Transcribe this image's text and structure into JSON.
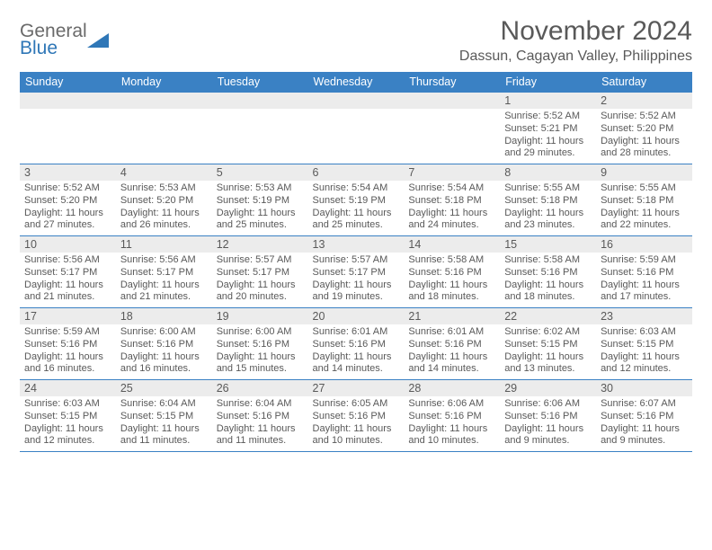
{
  "logo": {
    "line1": "General",
    "line2": "Blue"
  },
  "title": "November 2024",
  "location": "Dassun, Cagayan Valley, Philippines",
  "colors": {
    "header_bg": "#3a81c4",
    "header_text": "#ffffff",
    "daynum_bg": "#ececec",
    "text": "#595959",
    "logo_blue": "#2f77b7",
    "logo_gray": "#6a6a6a",
    "border": "#3a81c4"
  },
  "days_of_week": [
    "Sunday",
    "Monday",
    "Tuesday",
    "Wednesday",
    "Thursday",
    "Friday",
    "Saturday"
  ],
  "weeks": [
    [
      null,
      null,
      null,
      null,
      null,
      {
        "n": "1",
        "sunrise": "5:52 AM",
        "sunset": "5:21 PM",
        "dh": "11",
        "dm": "29"
      },
      {
        "n": "2",
        "sunrise": "5:52 AM",
        "sunset": "5:20 PM",
        "dh": "11",
        "dm": "28"
      }
    ],
    [
      {
        "n": "3",
        "sunrise": "5:52 AM",
        "sunset": "5:20 PM",
        "dh": "11",
        "dm": "27"
      },
      {
        "n": "4",
        "sunrise": "5:53 AM",
        "sunset": "5:20 PM",
        "dh": "11",
        "dm": "26"
      },
      {
        "n": "5",
        "sunrise": "5:53 AM",
        "sunset": "5:19 PM",
        "dh": "11",
        "dm": "25"
      },
      {
        "n": "6",
        "sunrise": "5:54 AM",
        "sunset": "5:19 PM",
        "dh": "11",
        "dm": "25"
      },
      {
        "n": "7",
        "sunrise": "5:54 AM",
        "sunset": "5:18 PM",
        "dh": "11",
        "dm": "24"
      },
      {
        "n": "8",
        "sunrise": "5:55 AM",
        "sunset": "5:18 PM",
        "dh": "11",
        "dm": "23"
      },
      {
        "n": "9",
        "sunrise": "5:55 AM",
        "sunset": "5:18 PM",
        "dh": "11",
        "dm": "22"
      }
    ],
    [
      {
        "n": "10",
        "sunrise": "5:56 AM",
        "sunset": "5:17 PM",
        "dh": "11",
        "dm": "21"
      },
      {
        "n": "11",
        "sunrise": "5:56 AM",
        "sunset": "5:17 PM",
        "dh": "11",
        "dm": "21"
      },
      {
        "n": "12",
        "sunrise": "5:57 AM",
        "sunset": "5:17 PM",
        "dh": "11",
        "dm": "20"
      },
      {
        "n": "13",
        "sunrise": "5:57 AM",
        "sunset": "5:17 PM",
        "dh": "11",
        "dm": "19"
      },
      {
        "n": "14",
        "sunrise": "5:58 AM",
        "sunset": "5:16 PM",
        "dh": "11",
        "dm": "18"
      },
      {
        "n": "15",
        "sunrise": "5:58 AM",
        "sunset": "5:16 PM",
        "dh": "11",
        "dm": "18"
      },
      {
        "n": "16",
        "sunrise": "5:59 AM",
        "sunset": "5:16 PM",
        "dh": "11",
        "dm": "17"
      }
    ],
    [
      {
        "n": "17",
        "sunrise": "5:59 AM",
        "sunset": "5:16 PM",
        "dh": "11",
        "dm": "16"
      },
      {
        "n": "18",
        "sunrise": "6:00 AM",
        "sunset": "5:16 PM",
        "dh": "11",
        "dm": "16"
      },
      {
        "n": "19",
        "sunrise": "6:00 AM",
        "sunset": "5:16 PM",
        "dh": "11",
        "dm": "15"
      },
      {
        "n": "20",
        "sunrise": "6:01 AM",
        "sunset": "5:16 PM",
        "dh": "11",
        "dm": "14"
      },
      {
        "n": "21",
        "sunrise": "6:01 AM",
        "sunset": "5:16 PM",
        "dh": "11",
        "dm": "14"
      },
      {
        "n": "22",
        "sunrise": "6:02 AM",
        "sunset": "5:15 PM",
        "dh": "11",
        "dm": "13"
      },
      {
        "n": "23",
        "sunrise": "6:03 AM",
        "sunset": "5:15 PM",
        "dh": "11",
        "dm": "12"
      }
    ],
    [
      {
        "n": "24",
        "sunrise": "6:03 AM",
        "sunset": "5:15 PM",
        "dh": "11",
        "dm": "12"
      },
      {
        "n": "25",
        "sunrise": "6:04 AM",
        "sunset": "5:15 PM",
        "dh": "11",
        "dm": "11"
      },
      {
        "n": "26",
        "sunrise": "6:04 AM",
        "sunset": "5:16 PM",
        "dh": "11",
        "dm": "11"
      },
      {
        "n": "27",
        "sunrise": "6:05 AM",
        "sunset": "5:16 PM",
        "dh": "11",
        "dm": "10"
      },
      {
        "n": "28",
        "sunrise": "6:06 AM",
        "sunset": "5:16 PM",
        "dh": "11",
        "dm": "10"
      },
      {
        "n": "29",
        "sunrise": "6:06 AM",
        "sunset": "5:16 PM",
        "dh": "11",
        "dm": "9"
      },
      {
        "n": "30",
        "sunrise": "6:07 AM",
        "sunset": "5:16 PM",
        "dh": "11",
        "dm": "9"
      }
    ]
  ],
  "labels": {
    "sunrise": "Sunrise:",
    "sunset": "Sunset:",
    "daylight_prefix": "Daylight:",
    "hours_word": "hours",
    "and_word": "and",
    "minutes_word": "minutes."
  }
}
